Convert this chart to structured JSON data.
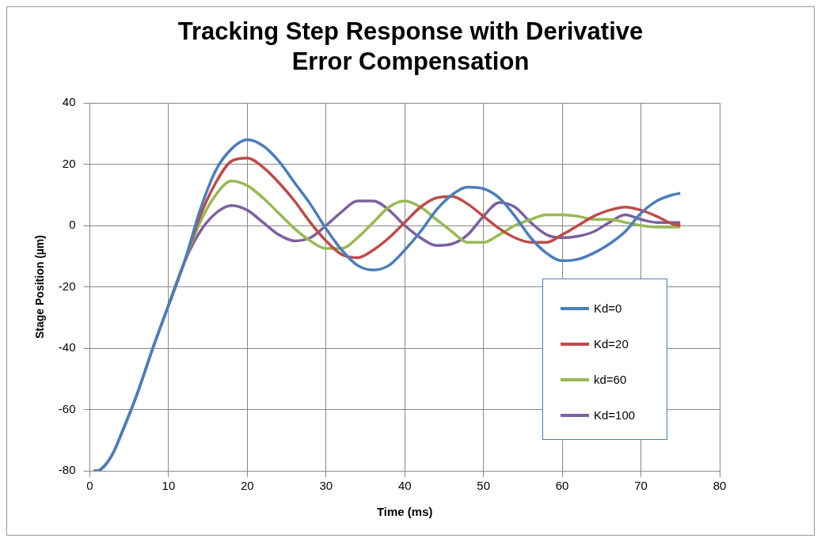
{
  "chart_data": {
    "type": "line",
    "title": "Tracking Step Response with Derivative Error Compensation",
    "xlabel": "Time (ms)",
    "ylabel": "Stage Position (µm)",
    "x": [
      0.5,
      1,
      2,
      3,
      4,
      6,
      8,
      10,
      12,
      14,
      16,
      18,
      20,
      22,
      24,
      26,
      28,
      30,
      32,
      34,
      36,
      38,
      40,
      42,
      44,
      46,
      48,
      50,
      52,
      54,
      56,
      58,
      60,
      62,
      64,
      66,
      68,
      70,
      72,
      74,
      75
    ],
    "series": [
      {
        "name": "Kd=0",
        "color": "#4a7ebb",
        "values": [
          -80,
          -80,
          -78,
          -74,
          -68,
          -55,
          -40,
          -26,
          -12,
          5,
          18,
          25,
          28,
          26,
          21,
          14,
          7,
          -1,
          -8,
          -13,
          -14.5,
          -13,
          -8,
          -2,
          5,
          10,
          12.5,
          12,
          9,
          3,
          -4,
          -9,
          -11.5,
          -11,
          -9,
          -6,
          -2,
          4,
          8,
          10,
          10.5
        ]
      },
      {
        "name": "Kd=20",
        "color": "#be4b48",
        "values": [
          null,
          null,
          null,
          null,
          null,
          null,
          null,
          -26,
          -12,
          3,
          14,
          21,
          22,
          19,
          14,
          8,
          1,
          -5,
          -9.5,
          -10.5,
          -8,
          -4,
          1,
          6,
          9,
          9.5,
          7,
          3,
          -1,
          -4,
          -5.5,
          -5.5,
          -3,
          0,
          3,
          5,
          6,
          5,
          3,
          0.5,
          0
        ]
      },
      {
        "name": "kd=60",
        "color": "#98b954",
        "values": [
          null,
          null,
          null,
          null,
          null,
          null,
          null,
          -26,
          -12,
          1,
          10,
          14.5,
          13,
          9,
          4,
          -1,
          -5,
          -7.5,
          -7.5,
          -4,
          1,
          6,
          8,
          6,
          2,
          -2,
          -5.5,
          -5.5,
          -3,
          0,
          2,
          3.5,
          3.5,
          3,
          2,
          2,
          1,
          0,
          -0.5,
          -0.5,
          -0.5
        ]
      },
      {
        "name": "Kd=100",
        "color": "#7d60a0",
        "values": [
          -80,
          -80,
          -78,
          -74,
          -68,
          -55,
          -40,
          -26,
          -12,
          -2,
          4,
          6.5,
          5,
          1,
          -3,
          -5,
          -4,
          0,
          4.5,
          8,
          8,
          5,
          0,
          -4,
          -6.5,
          -6,
          -3,
          3,
          7.5,
          6,
          1,
          -3,
          -4,
          -3.5,
          -2,
          1,
          3.5,
          2,
          1,
          1,
          1
        ]
      }
    ],
    "xlim": [
      0,
      80
    ],
    "xticks": [
      0,
      10,
      20,
      30,
      40,
      50,
      60,
      70,
      80
    ],
    "ylim": [
      -80,
      40
    ],
    "yticks": [
      -80,
      -60,
      -40,
      -20,
      0,
      20,
      40
    ],
    "grid": true,
    "legend": "bottom right",
    "marker": "none",
    "line_style": "solid"
  }
}
